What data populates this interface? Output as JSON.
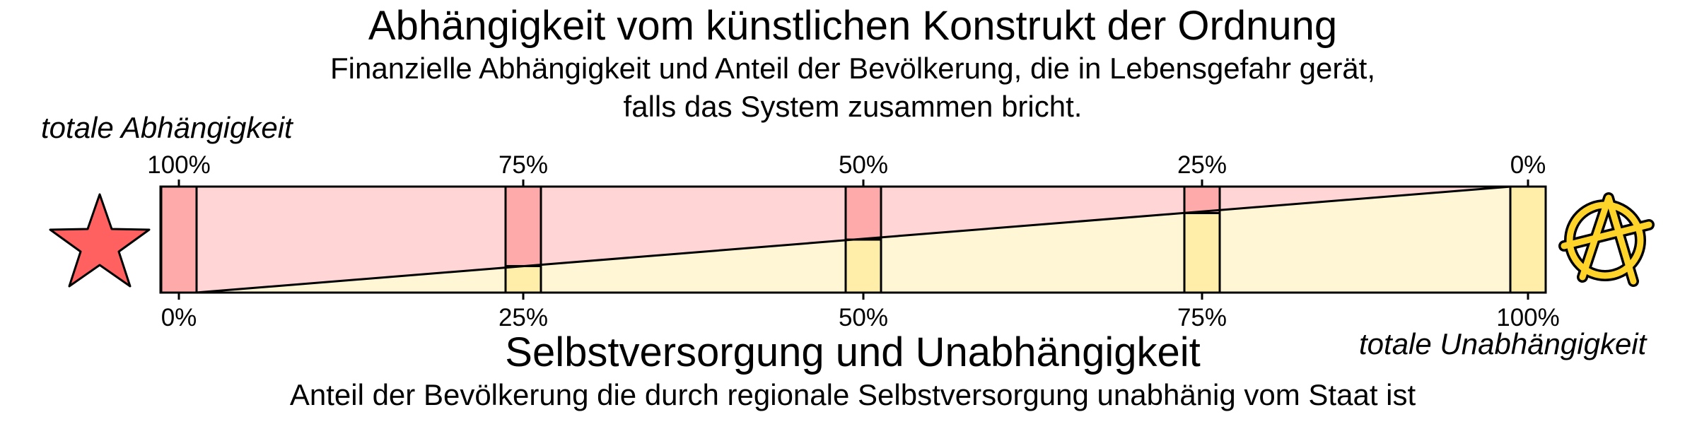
{
  "title": "Abhängigkeit vom künstlichen Konstrukt der Ordnung",
  "subtitle_line1": "Finanzielle Abhängigkeit und Anteil der Bevölkerung, die in Lebensgefahr gerät,",
  "subtitle_line2": "falls das System zusammen bricht.",
  "left_extreme_label": "totale Abhängigkeit",
  "right_extreme_label": "totale Unabhängigkeit",
  "bottom_title": "Selbstversorgung und Unabhängigkeit",
  "bottom_description": "Anteil der Bevölkerung die durch regionale Selbstversorgung unabhänig vom Staat ist",
  "top_ticks": [
    "100%",
    "75%",
    "50%",
    "25%",
    "0%"
  ],
  "bottom_ticks": [
    "0%",
    "25%",
    "50%",
    "75%",
    "100%"
  ],
  "levels": [
    0,
    0.25,
    0.5,
    0.75,
    1
  ],
  "colors": {
    "dependence_light": "#ffd5d5",
    "dependence_marker": "#ffaaaa",
    "independence_light": "#fff6d5",
    "independence_marker": "#ffeeaa",
    "star": "#ff6060",
    "anarchy_symbol": "#ffd42a",
    "stroke": "#000000"
  },
  "icons": {
    "left": "red-star-icon",
    "right": "anarchy-symbol-icon"
  }
}
